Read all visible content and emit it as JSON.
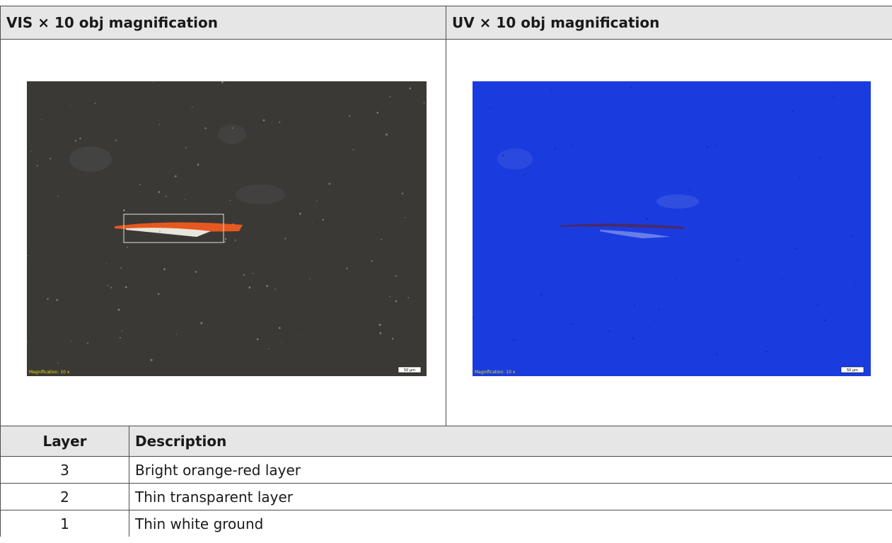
{
  "figure_table": {
    "headers": [
      "VIS × 10 obj magnification",
      "UV × 10 obj magnification"
    ],
    "images": [
      {
        "magnification_label": "Magnification: 10 x",
        "scale_bar": "50 µm"
      },
      {
        "magnification_label": "Magnification: 10 x",
        "scale_bar": "50 µm"
      }
    ]
  },
  "layer_table": {
    "headers": [
      "Layer",
      "Description"
    ],
    "rows": [
      [
        "3",
        "Bright orange-red layer"
      ],
      [
        "2",
        "Thin transparent layer"
      ],
      [
        "1",
        "Thin white ground"
      ]
    ]
  }
}
